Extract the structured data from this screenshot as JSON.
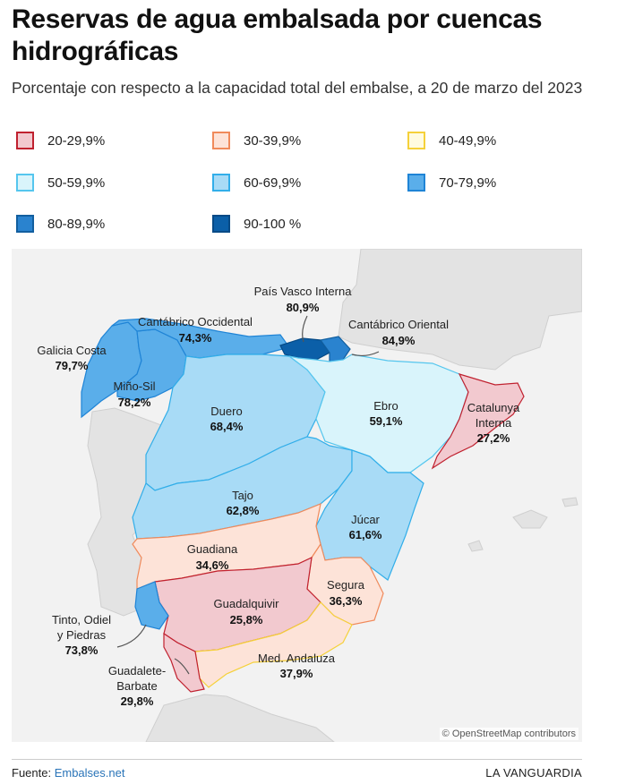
{
  "title": "Reservas de agua embalsada por cuencas hidrográficas",
  "subtitle": "Porcentaje con respecto a la capacidad total del embalse, a 20 de marzo del 2023",
  "legend": [
    {
      "label": "20-29,9%",
      "fill": "#f2c9cf",
      "stroke": "#c0212f"
    },
    {
      "label": "30-39,9%",
      "fill": "#fde3d8",
      "stroke": "#f08a5b"
    },
    {
      "label": "40-49,9%",
      "fill": "#fffbe0",
      "stroke": "#f5d13a"
    },
    {
      "label": "50-59,9%",
      "fill": "#d9f4fb",
      "stroke": "#55c6ee"
    },
    {
      "label": "60-69,9%",
      "fill": "#a8dbf6",
      "stroke": "#32aee9"
    },
    {
      "label": "70-79,9%",
      "fill": "#5aaeea",
      "stroke": "#1f84d6"
    },
    {
      "label": "80-89,9%",
      "fill": "#2a83cf",
      "stroke": "#125f9f"
    },
    {
      "label": "90-100 %",
      "fill": "#0b5fa8",
      "stroke": "#064a86"
    }
  ],
  "basins": {
    "galicia": {
      "name": "Galicia Costa",
      "value": "79,7%"
    },
    "minosil": {
      "name": "Miño-Sil",
      "value": "78,2%"
    },
    "cantocc": {
      "name": "Cantábrico Occidental",
      "value": "74,3%"
    },
    "pvasco": {
      "name": "País Vasco Interna",
      "value": "80,9%"
    },
    "cantori": {
      "name": "Cantábrico Oriental",
      "value": "84,9%"
    },
    "duero": {
      "name": "Duero",
      "value": "68,4%"
    },
    "ebro": {
      "name": "Ebro",
      "value": "59,1%"
    },
    "cataluna1": {
      "name": "Catalunya",
      "value": ""
    },
    "cataluna2": {
      "name": "Interna",
      "value": "27,2%"
    },
    "tajo": {
      "name": "Tajo",
      "value": "62,8%"
    },
    "jucar": {
      "name": "Júcar",
      "value": "61,6%"
    },
    "guadiana": {
      "name": "Guadiana",
      "value": "34,6%"
    },
    "segura": {
      "name": "Segura",
      "value": "36,3%"
    },
    "guadalquivir": {
      "name": "Guadalquivir",
      "value": "25,8%"
    },
    "tinto1": {
      "name": "Tinto, Odiel",
      "value": ""
    },
    "tinto2": {
      "name": "y Piedras",
      "value": "73,8%"
    },
    "medand": {
      "name": "Med. Andaluza",
      "value": "37,9%"
    },
    "guadalete1": {
      "name": "Guadalete-",
      "value": ""
    },
    "guadalete2": {
      "name": "Barbate",
      "value": "29,8%"
    }
  },
  "attribution": "© OpenStreetMap contributors",
  "footer": {
    "source_label": "Fuente: ",
    "source_link": "Embalses.net",
    "brand": "LA VANGUARDIA"
  }
}
